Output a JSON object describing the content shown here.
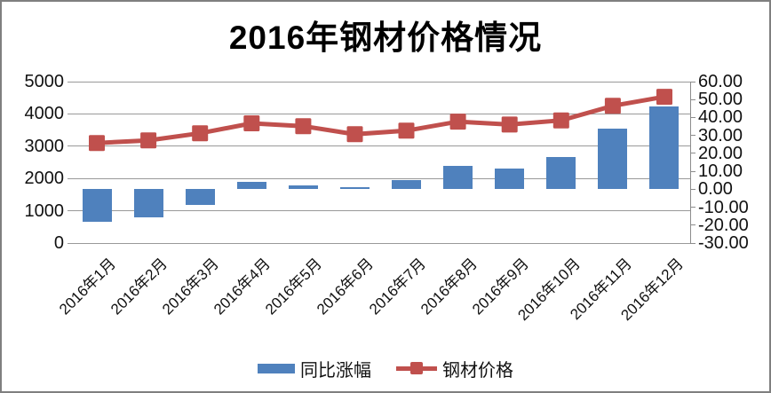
{
  "chart_data": {
    "type": "combo-bar-line",
    "title": "2016年钢材价格情况",
    "categories": [
      "2016年1月",
      "2016年2月",
      "2016年3月",
      "2016年4月",
      "2016年5月",
      "2016年6月",
      "2016年7月",
      "2016年8月",
      "2016年9月",
      "2016年10月",
      "2016年11月",
      "2016年12月"
    ],
    "series": [
      {
        "name": "同比涨幅",
        "type": "bar",
        "axis": "right",
        "unit": "%",
        "color": "#4f81bd",
        "values": [
          -18.3,
          -15.5,
          -8.6,
          4.2,
          2.3,
          1.3,
          5.0,
          12.8,
          11.4,
          18.0,
          33.6,
          46.3
        ]
      },
      {
        "name": "钢材价格",
        "type": "line",
        "axis": "left",
        "marker": "square",
        "color": "#c0504d",
        "values": [
          3100,
          3180,
          3400,
          3710,
          3620,
          3370,
          3480,
          3760,
          3670,
          3800,
          4250,
          4530
        ]
      }
    ],
    "left_axis": {
      "min": 0,
      "max": 5000,
      "step": 1000,
      "tick_labels": [
        "5000",
        "4000",
        "3000",
        "2000",
        "1000",
        "0"
      ]
    },
    "right_axis": {
      "min": -30,
      "max": 60,
      "step": 10,
      "tick_labels": [
        "60.00",
        "50.00",
        "40.00",
        "30.00",
        "20.00",
        "10.00",
        "0.00",
        "-10.00",
        "-20.00",
        "-30.00"
      ]
    },
    "legend": {
      "position": "bottom",
      "entries": [
        "同比涨幅",
        "钢材价格"
      ]
    },
    "grid": "horizontal-only"
  },
  "colors": {
    "bar": "#4f81bd",
    "line": "#c0504d",
    "grid": "#999999",
    "axis": "#8c8c8c",
    "text": "#111111",
    "border": "#7f7f7f",
    "background": "#ffffff"
  }
}
